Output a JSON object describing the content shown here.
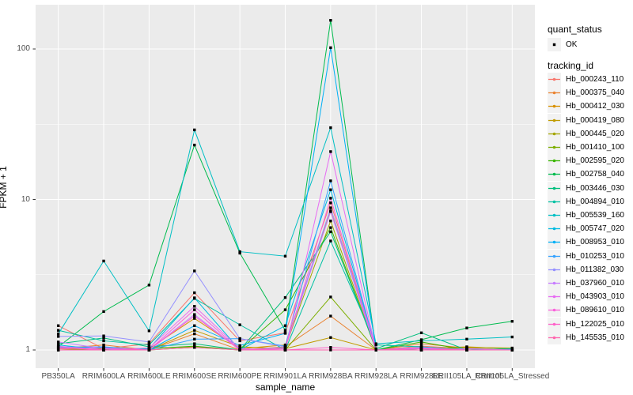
{
  "chart_data": {
    "type": "line",
    "title": "",
    "xlabel": "sample_name",
    "ylabel": "FPKM + 1",
    "y_scale": "log10",
    "y_ticks": [
      1,
      10,
      100
    ],
    "y_minor_ticks": [
      3.162,
      31.62
    ],
    "ylim": [
      0.76,
      197
    ],
    "legend_position": "right",
    "grid": true,
    "point_color": "#000000",
    "categories": [
      "PB350LA",
      "RRIM600LA",
      "RRIM600LE",
      "RRIM600SE",
      "RRIM600PE",
      "RRIM901LA",
      "RRIM928BA",
      "RRIM928LA",
      "RRIM928LE",
      "RRII105LA_Control",
      "RRII105LA_Stressed"
    ],
    "series": [
      {
        "name": "Hb_000243_110",
        "color": "#F8766D",
        "values": [
          1.45,
          1.02,
          1.1,
          2.4,
          1.15,
          1.3,
          9.5,
          1.0,
          1.06,
          1.02,
          1.0
        ]
      },
      {
        "name": "Hb_000375_040",
        "color": "#EA8331",
        "values": [
          1.02,
          1.08,
          1.0,
          1.28,
          1.0,
          1.05,
          1.68,
          1.0,
          1.1,
          1.03,
          1.0
        ]
      },
      {
        "name": "Hb_000412_030",
        "color": "#D89000",
        "values": [
          1.0,
          1.0,
          1.02,
          1.62,
          1.02,
          1.08,
          8.4,
          1.0,
          1.02,
          1.05,
          1.02
        ]
      },
      {
        "name": "Hb_000419_080",
        "color": "#C09B00",
        "values": [
          1.0,
          1.02,
          1.0,
          1.35,
          1.05,
          1.02,
          1.21,
          1.0,
          1.04,
          1.02,
          1.01
        ]
      },
      {
        "name": "Hb_000445_020",
        "color": "#A3A500",
        "values": [
          1.02,
          1.0,
          1.03,
          1.05,
          1.0,
          1.04,
          7.2,
          1.0,
          1.0,
          1.04,
          1.03
        ]
      },
      {
        "name": "Hb_001410_100",
        "color": "#7CAE00",
        "values": [
          1.0,
          1.01,
          1.0,
          1.04,
          1.0,
          1.0,
          2.25,
          1.0,
          1.02,
          1.0,
          1.0
        ]
      },
      {
        "name": "Hb_002595_020",
        "color": "#39B600",
        "values": [
          1.05,
          1.0,
          1.02,
          1.06,
          1.0,
          1.85,
          6.5,
          1.0,
          1.13,
          1.0,
          1.02
        ]
      },
      {
        "name": "Hb_002758_040",
        "color": "#00BB4E",
        "values": [
          1.05,
          1.8,
          2.7,
          23.0,
          4.4,
          1.35,
          155.0,
          1.0,
          1.17,
          1.4,
          1.55
        ]
      },
      {
        "name": "Hb_003446_030",
        "color": "#00BF7D",
        "values": [
          1.1,
          1.2,
          1.05,
          1.1,
          1.0,
          2.23,
          6.1,
          1.02,
          1.3,
          1.0,
          1.0
        ]
      },
      {
        "name": "Hb_004894_010",
        "color": "#00C1A3",
        "values": [
          1.35,
          1.15,
          1.08,
          2.2,
          1.47,
          1.0,
          5.3,
          1.08,
          1.05,
          1.0,
          1.02
        ]
      },
      {
        "name": "Hb_005539_160",
        "color": "#00BFC4",
        "values": [
          1.28,
          3.9,
          1.34,
          29.0,
          4.5,
          4.2,
          30.0,
          1.1,
          1.15,
          1.18,
          1.22
        ]
      },
      {
        "name": "Hb_005747_020",
        "color": "#00BAE0",
        "values": [
          1.08,
          1.0,
          1.02,
          2.22,
          1.0,
          1.45,
          11.6,
          1.0,
          1.0,
          1.02,
          1.0
        ]
      },
      {
        "name": "Hb_008953_010",
        "color": "#00B0F6",
        "values": [
          1.05,
          1.04,
          1.0,
          1.45,
          1.07,
          1.29,
          102.0,
          1.0,
          1.02,
          1.0,
          1.0
        ]
      },
      {
        "name": "Hb_010253_010",
        "color": "#35A2FF",
        "values": [
          1.04,
          1.05,
          1.0,
          1.18,
          1.19,
          1.06,
          13.3,
          1.0,
          1.0,
          1.0,
          1.01
        ]
      },
      {
        "name": "Hb_011382_030",
        "color": "#9590FF",
        "values": [
          1.23,
          1.24,
          1.13,
          3.35,
          1.19,
          1.05,
          8.8,
          1.0,
          1.04,
          1.0,
          1.0
        ]
      },
      {
        "name": "Hb_037960_010",
        "color": "#C77CFF",
        "values": [
          1.13,
          1.02,
          1.0,
          1.72,
          1.0,
          1.04,
          8.3,
          1.0,
          1.0,
          1.02,
          1.0
        ]
      },
      {
        "name": "Hb_043903_010",
        "color": "#E76BF3",
        "values": [
          1.06,
          1.0,
          1.03,
          1.95,
          1.02,
          1.0,
          20.8,
          1.0,
          1.03,
          1.0,
          1.0
        ]
      },
      {
        "name": "Hb_089610_010",
        "color": "#FA62DB",
        "values": [
          1.04,
          1.0,
          1.0,
          1.85,
          1.0,
          1.02,
          10.2,
          1.0,
          1.0,
          1.0,
          1.0
        ]
      },
      {
        "name": "Hb_122025_010",
        "color": "#FF61C9",
        "values": [
          1.02,
          1.03,
          1.0,
          1.68,
          1.0,
          1.0,
          1.04,
          1.0,
          1.02,
          1.0,
          1.0
        ]
      },
      {
        "name": "Hb_145535_010",
        "color": "#FF65AE",
        "values": [
          1.0,
          1.0,
          1.0,
          1.04,
          1.0,
          1.0,
          1.0,
          1.0,
          1.0,
          1.0,
          1.0
        ]
      }
    ]
  },
  "legend": {
    "quant_status_title": "quant_status",
    "ok_label": "OK",
    "tracking_title": "tracking_id"
  },
  "colors": {
    "panel_bg": "#EBEBEB",
    "grid_major": "#FFFFFF",
    "grid_minor": "#F5F5F5",
    "tick_mark": "#333333",
    "tick_label": "#4D4D4D",
    "key_bg": "#F2F2F2",
    "point": "#000000"
  }
}
